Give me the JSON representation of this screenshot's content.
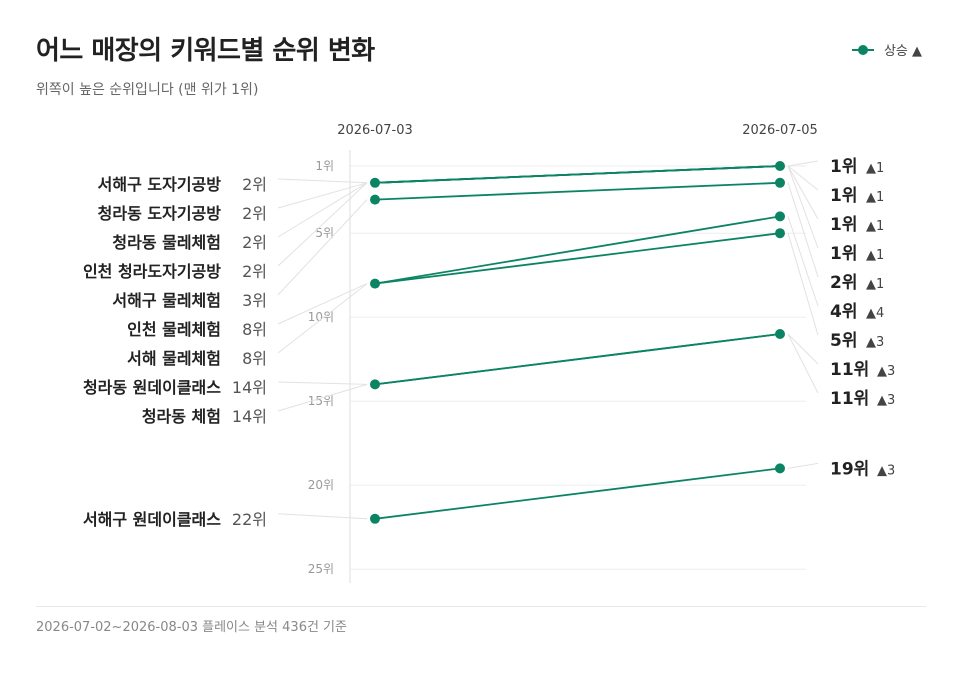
{
  "title": "어느 매장의 키워드별 순위 변화",
  "subtitle": "위쪽이 높은 순위입니다 (맨 위가 1위)",
  "legend": {
    "label": "상승 ▲"
  },
  "footer": "2026-07-02~2026-08-03 플레이스 분석 436건 기준",
  "colors": {
    "line": "#0b8463",
    "grid": "#eeeeee",
    "axis": "#dddddd",
    "leader": "#e2e2e2"
  },
  "chart_data": {
    "type": "line",
    "x": [
      "2026-07-03",
      "2026-07-05"
    ],
    "y_axis": {
      "ticks": [
        "1위",
        "5위",
        "10위",
        "15위",
        "20위",
        "25위"
      ],
      "tick_values": [
        1,
        5,
        10,
        15,
        20,
        25
      ],
      "ylim": [
        1,
        25
      ],
      "reversed": true
    },
    "series": [
      {
        "name": "서해구 도자기공방",
        "values": [
          2,
          1
        ],
        "start_label": "2위",
        "end_label": "1위",
        "change": "▲1"
      },
      {
        "name": "청라동 도자기공방",
        "values": [
          2,
          1
        ],
        "start_label": "2위",
        "end_label": "1위",
        "change": "▲1"
      },
      {
        "name": "청라동 물레체험",
        "values": [
          2,
          1
        ],
        "start_label": "2위",
        "end_label": "1위",
        "change": "▲1"
      },
      {
        "name": "인천 청라도자기공방",
        "values": [
          2,
          1
        ],
        "start_label": "2위",
        "end_label": "1위",
        "change": "▲1"
      },
      {
        "name": "서해구 물레체험",
        "values": [
          3,
          2
        ],
        "start_label": "3위",
        "end_label": "2위",
        "change": "▲1"
      },
      {
        "name": "인천 물레체험",
        "values": [
          8,
          4
        ],
        "start_label": "8위",
        "end_label": "4위",
        "change": "▲4"
      },
      {
        "name": "서해 물레체험",
        "values": [
          8,
          5
        ],
        "start_label": "8위",
        "end_label": "5위",
        "change": "▲3"
      },
      {
        "name": "청라동 원데이클래스",
        "values": [
          14,
          11
        ],
        "start_label": "14위",
        "end_label": "11위",
        "change": "▲3"
      },
      {
        "name": "청라동 체험",
        "values": [
          14,
          11
        ],
        "start_label": "14위",
        "end_label": "11위",
        "change": "▲3"
      },
      {
        "name": "서해구 원데이클래스",
        "values": [
          22,
          19
        ],
        "start_label": "22위",
        "end_label": "19위",
        "change": "▲3"
      }
    ]
  }
}
